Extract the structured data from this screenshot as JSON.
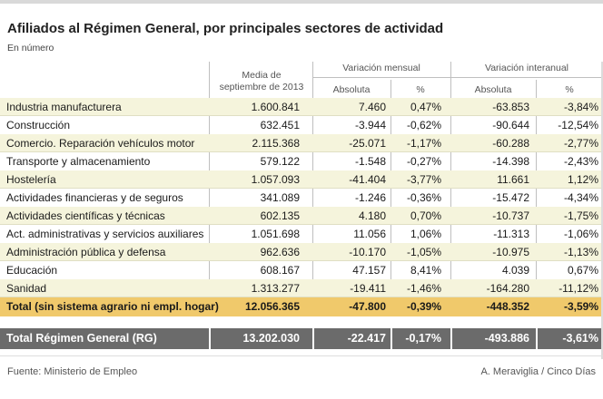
{
  "chart_data": {
    "type": "table",
    "title": "Afiliados al Régimen General, por principales sectores de actividad",
    "subtitle": "En número",
    "headers": {
      "media": "Media de\nseptiembre de 2013",
      "mensual_group": "Variación mensual",
      "interanual_group": "Variación interanual",
      "absoluta": "Absoluta",
      "pct": "%"
    },
    "rows": [
      {
        "sector": "Industria manufacturera",
        "media": "1.600.841",
        "mens_abs": "7.460",
        "mens_pct": "0,47%",
        "inter_abs": "-63.853",
        "inter_pct": "-3,84%"
      },
      {
        "sector": "Construcción",
        "media": "632.451",
        "mens_abs": "-3.944",
        "mens_pct": "-0,62%",
        "inter_abs": "-90.644",
        "inter_pct": "-12,54%"
      },
      {
        "sector": "Comercio. Reparación vehículos motor",
        "media": "2.115.368",
        "mens_abs": "-25.071",
        "mens_pct": "-1,17%",
        "inter_abs": "-60.288",
        "inter_pct": "-2,77%"
      },
      {
        "sector": "Transporte y almacenamiento",
        "media": "579.122",
        "mens_abs": "-1.548",
        "mens_pct": "-0,27%",
        "inter_abs": "-14.398",
        "inter_pct": "-2,43%"
      },
      {
        "sector": "Hostelería",
        "media": "1.057.093",
        "mens_abs": "-41.404",
        "mens_pct": "-3,77%",
        "inter_abs": "11.661",
        "inter_pct": "1,12%"
      },
      {
        "sector": "Actividades financieras y de seguros",
        "media": "341.089",
        "mens_abs": "-1.246",
        "mens_pct": "-0,36%",
        "inter_abs": "-15.472",
        "inter_pct": "-4,34%"
      },
      {
        "sector": "Actividades científicas y técnicas",
        "media": "602.135",
        "mens_abs": "4.180",
        "mens_pct": "0,70%",
        "inter_abs": "-10.737",
        "inter_pct": "-1,75%"
      },
      {
        "sector": "Act. administrativas y servicios auxiliares",
        "media": "1.051.698",
        "mens_abs": "11.056",
        "mens_pct": "1,06%",
        "inter_abs": "-11.313",
        "inter_pct": "-1,06%"
      },
      {
        "sector": "Administración pública y defensa",
        "media": "962.636",
        "mens_abs": "-10.170",
        "mens_pct": "-1,05%",
        "inter_abs": "-10.975",
        "inter_pct": "-1,13%"
      },
      {
        "sector": "Educación",
        "media": "608.167",
        "mens_abs": "47.157",
        "mens_pct": "8,41%",
        "inter_abs": "4.039",
        "inter_pct": "0,67%"
      },
      {
        "sector": "Sanidad",
        "media": "1.313.277",
        "mens_abs": "-19.411",
        "mens_pct": "-1,46%",
        "inter_abs": "-164.280",
        "inter_pct": "-11,12%"
      }
    ],
    "total": {
      "sector": "Total (sin sistema agrario ni empl. hogar)",
      "media": "12.056.365",
      "mens_abs": "-47.800",
      "mens_pct": "-0,39%",
      "inter_abs": "-448.352",
      "inter_pct": "-3,59%"
    },
    "total_rg": {
      "sector": "Total Régimen General (RG)",
      "media": "13.202.030",
      "mens_abs": "-22.417",
      "mens_pct": "-0,17%",
      "inter_abs": "-493.886",
      "inter_pct": "-3,61%"
    },
    "colors": {
      "band": "#f5f4dc",
      "total": "#f0c96b",
      "rg": "#6b6b6b"
    }
  },
  "footer": {
    "source": "Fuente: Ministerio de Empleo",
    "credit": "A. Meraviglia / Cinco Días"
  }
}
